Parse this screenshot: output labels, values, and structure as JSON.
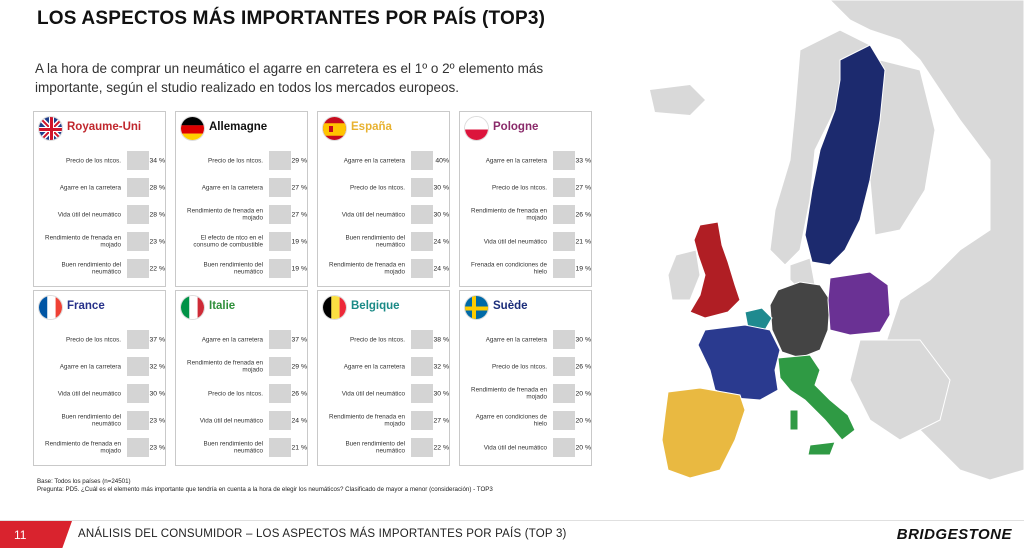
{
  "title": "LOS ASPECTOS MÁS IMPORTANTES POR PAÍS (TOP3)",
  "subtitle": "A la hora de comprar un neumático el agarre en carretera es el 1º o 2º elemento más importante, según el studio realizado en  todos los mercados europeos.",
  "countries": [
    {
      "name": "Royaume-Uni",
      "color": "#c0272d",
      "rows": [
        {
          "label": "Precio de los ntcos.",
          "value": "34 %"
        },
        {
          "label": "Agarre en la carretera",
          "value": "28 %"
        },
        {
          "label": "Vida útil del neumático",
          "value": "28 %"
        },
        {
          "label": "Rendimiento de frenada en mojado",
          "value": "23 %"
        },
        {
          "label": "Buen rendimiento del neumático",
          "value": "22 %"
        }
      ]
    },
    {
      "name": "Allemagne",
      "color": "#111111",
      "rows": [
        {
          "label": "Precio de los ntcos.",
          "value": "29 %"
        },
        {
          "label": "Agarre en la carretera",
          "value": "27 %"
        },
        {
          "label": "Rendimiento de frenada en mojado",
          "value": "27 %"
        },
        {
          "label": "El efecto de ntco en el consumo de combustible",
          "value": "19 %"
        },
        {
          "label": "Buen rendimiento del neumático",
          "value": "19 %"
        }
      ]
    },
    {
      "name": "España",
      "color": "#e8b230",
      "rows": [
        {
          "label": "Agarre en la carretera",
          "value": "40%"
        },
        {
          "label": "Precio de los ntcos.",
          "value": "30 %"
        },
        {
          "label": "Vida útil del neumático",
          "value": "30 %"
        },
        {
          "label": "Buen rendimiento del neumático",
          "value": "24 %"
        },
        {
          "label": "Rendimiento de frenada en mojado",
          "value": "24 %"
        }
      ]
    },
    {
      "name": "Pologne",
      "color": "#8a2a6a",
      "rows": [
        {
          "label": "Agarre en la carretera",
          "value": "33 %"
        },
        {
          "label": "Precio de los ntcos.",
          "value": "27 %"
        },
        {
          "label": "Rendimiento de frenada en mojado",
          "value": "26 %"
        },
        {
          "label": "Vida útil del neumático",
          "value": "21 %"
        },
        {
          "label": "Frenada en condiciones de hielo",
          "value": "19 %"
        }
      ]
    },
    {
      "name": "France",
      "color": "#27318a",
      "rows": [
        {
          "label": "Precio de los ntcos.",
          "value": "37 %"
        },
        {
          "label": "Agarre en la carretera",
          "value": "32 %"
        },
        {
          "label": "Vida útil del neumático",
          "value": "30 %"
        },
        {
          "label": "Buen rendimiento del neumático",
          "value": "23 %"
        },
        {
          "label": "Rendimiento de frenada en mojado",
          "value": "23 %"
        }
      ]
    },
    {
      "name": "Italie",
      "color": "#2f8f3a",
      "rows": [
        {
          "label": "Agarre en la carretera",
          "value": "37 %"
        },
        {
          "label": "Rendimiento de frenada en mojado",
          "value": "29 %"
        },
        {
          "label": "Precio de los ntcos.",
          "value": "26 %"
        },
        {
          "label": "Vida útil del neumático",
          "value": "24 %"
        },
        {
          "label": "Buen rendimiento del neumático",
          "value": "21 %"
        }
      ]
    },
    {
      "name": "Belgique",
      "color": "#1a8a86",
      "rows": [
        {
          "label": "Precio de los ntcos.",
          "value": "38 %"
        },
        {
          "label": "Agarre en la carretera",
          "value": "32 %"
        },
        {
          "label": "Vida útil del neumático",
          "value": "30 %"
        },
        {
          "label": "Rendimiento de frenada en mojado",
          "value": "27 %"
        },
        {
          "label": "Buen rendimiento del neumático",
          "value": "22 %"
        }
      ]
    },
    {
      "name": "Suède",
      "color": "#1b2d7a",
      "rows": [
        {
          "label": "Agarre en la carretera",
          "value": "30 %"
        },
        {
          "label": "Precio de los ntcos.",
          "value": "26 %"
        },
        {
          "label": "Rendimiento de frenada en mojado",
          "value": "20 %"
        },
        {
          "label": "Agarre en condiciones de hielo",
          "value": "20 %"
        },
        {
          "label": "Vida útil del neumático",
          "value": "20 %"
        }
      ]
    }
  ],
  "base_note": "Base: Todos los países (n=24501)",
  "question_note": "Pregunta: PD5. ¿Cuál es el elemento más importante que tendría en cuenta a la hora de elegir los neumáticos? Clasificado de mayor a menor (consideración) - TOP3",
  "footer": {
    "page_number": "11",
    "text": "ANÁLISIS DEL CONSUMIDOR – LOS ASPECTOS MÁS IMPORTANTES POR PAÍS (TOP 3)",
    "brand": "BRIDGESTONE"
  },
  "map_colors": {
    "uk": "#b01e24",
    "germany": "#444444",
    "poland": "#6a3194",
    "france": "#2a3a8f",
    "italy": "#2f9a44",
    "spain": "#e9b941",
    "sweden": "#1c2a6e",
    "belgium": "#1f8a8f",
    "other": "#d9d9d9"
  }
}
